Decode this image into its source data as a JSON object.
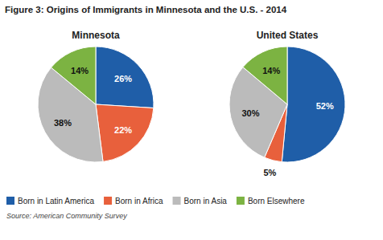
{
  "title": "Figure 3: Origins of Immigrants in Minnesota and the U.S. - 2014",
  "annotations": [
    "Source: American Community Survey"
  ],
  "chart_data": [
    {
      "type": "pie",
      "title": "Minnesota",
      "categories": [
        "Born in Latin America",
        "Born in Africa",
        "Born in Asia",
        "Born Elsewhere"
      ],
      "values": [
        26,
        22,
        38,
        14
      ],
      "value_labels": [
        "26%",
        "22%",
        "38%",
        "14%"
      ],
      "colors": [
        "#1F5EA8",
        "#E8603C",
        "#BBBBBB",
        "#7CB342"
      ],
      "data_labels": true,
      "legend": "bottom"
    },
    {
      "type": "pie",
      "title": "United States",
      "categories": [
        "Born in Latin America",
        "Born in Africa",
        "Born in Asia",
        "Born Elsewhere"
      ],
      "values": [
        52,
        5,
        30,
        14
      ],
      "value_labels": [
        "52%",
        "5%",
        "30%",
        "14%"
      ],
      "colors": [
        "#1F5EA8",
        "#E8603C",
        "#BBBBBB",
        "#7CB342"
      ],
      "data_labels": true
    }
  ]
}
